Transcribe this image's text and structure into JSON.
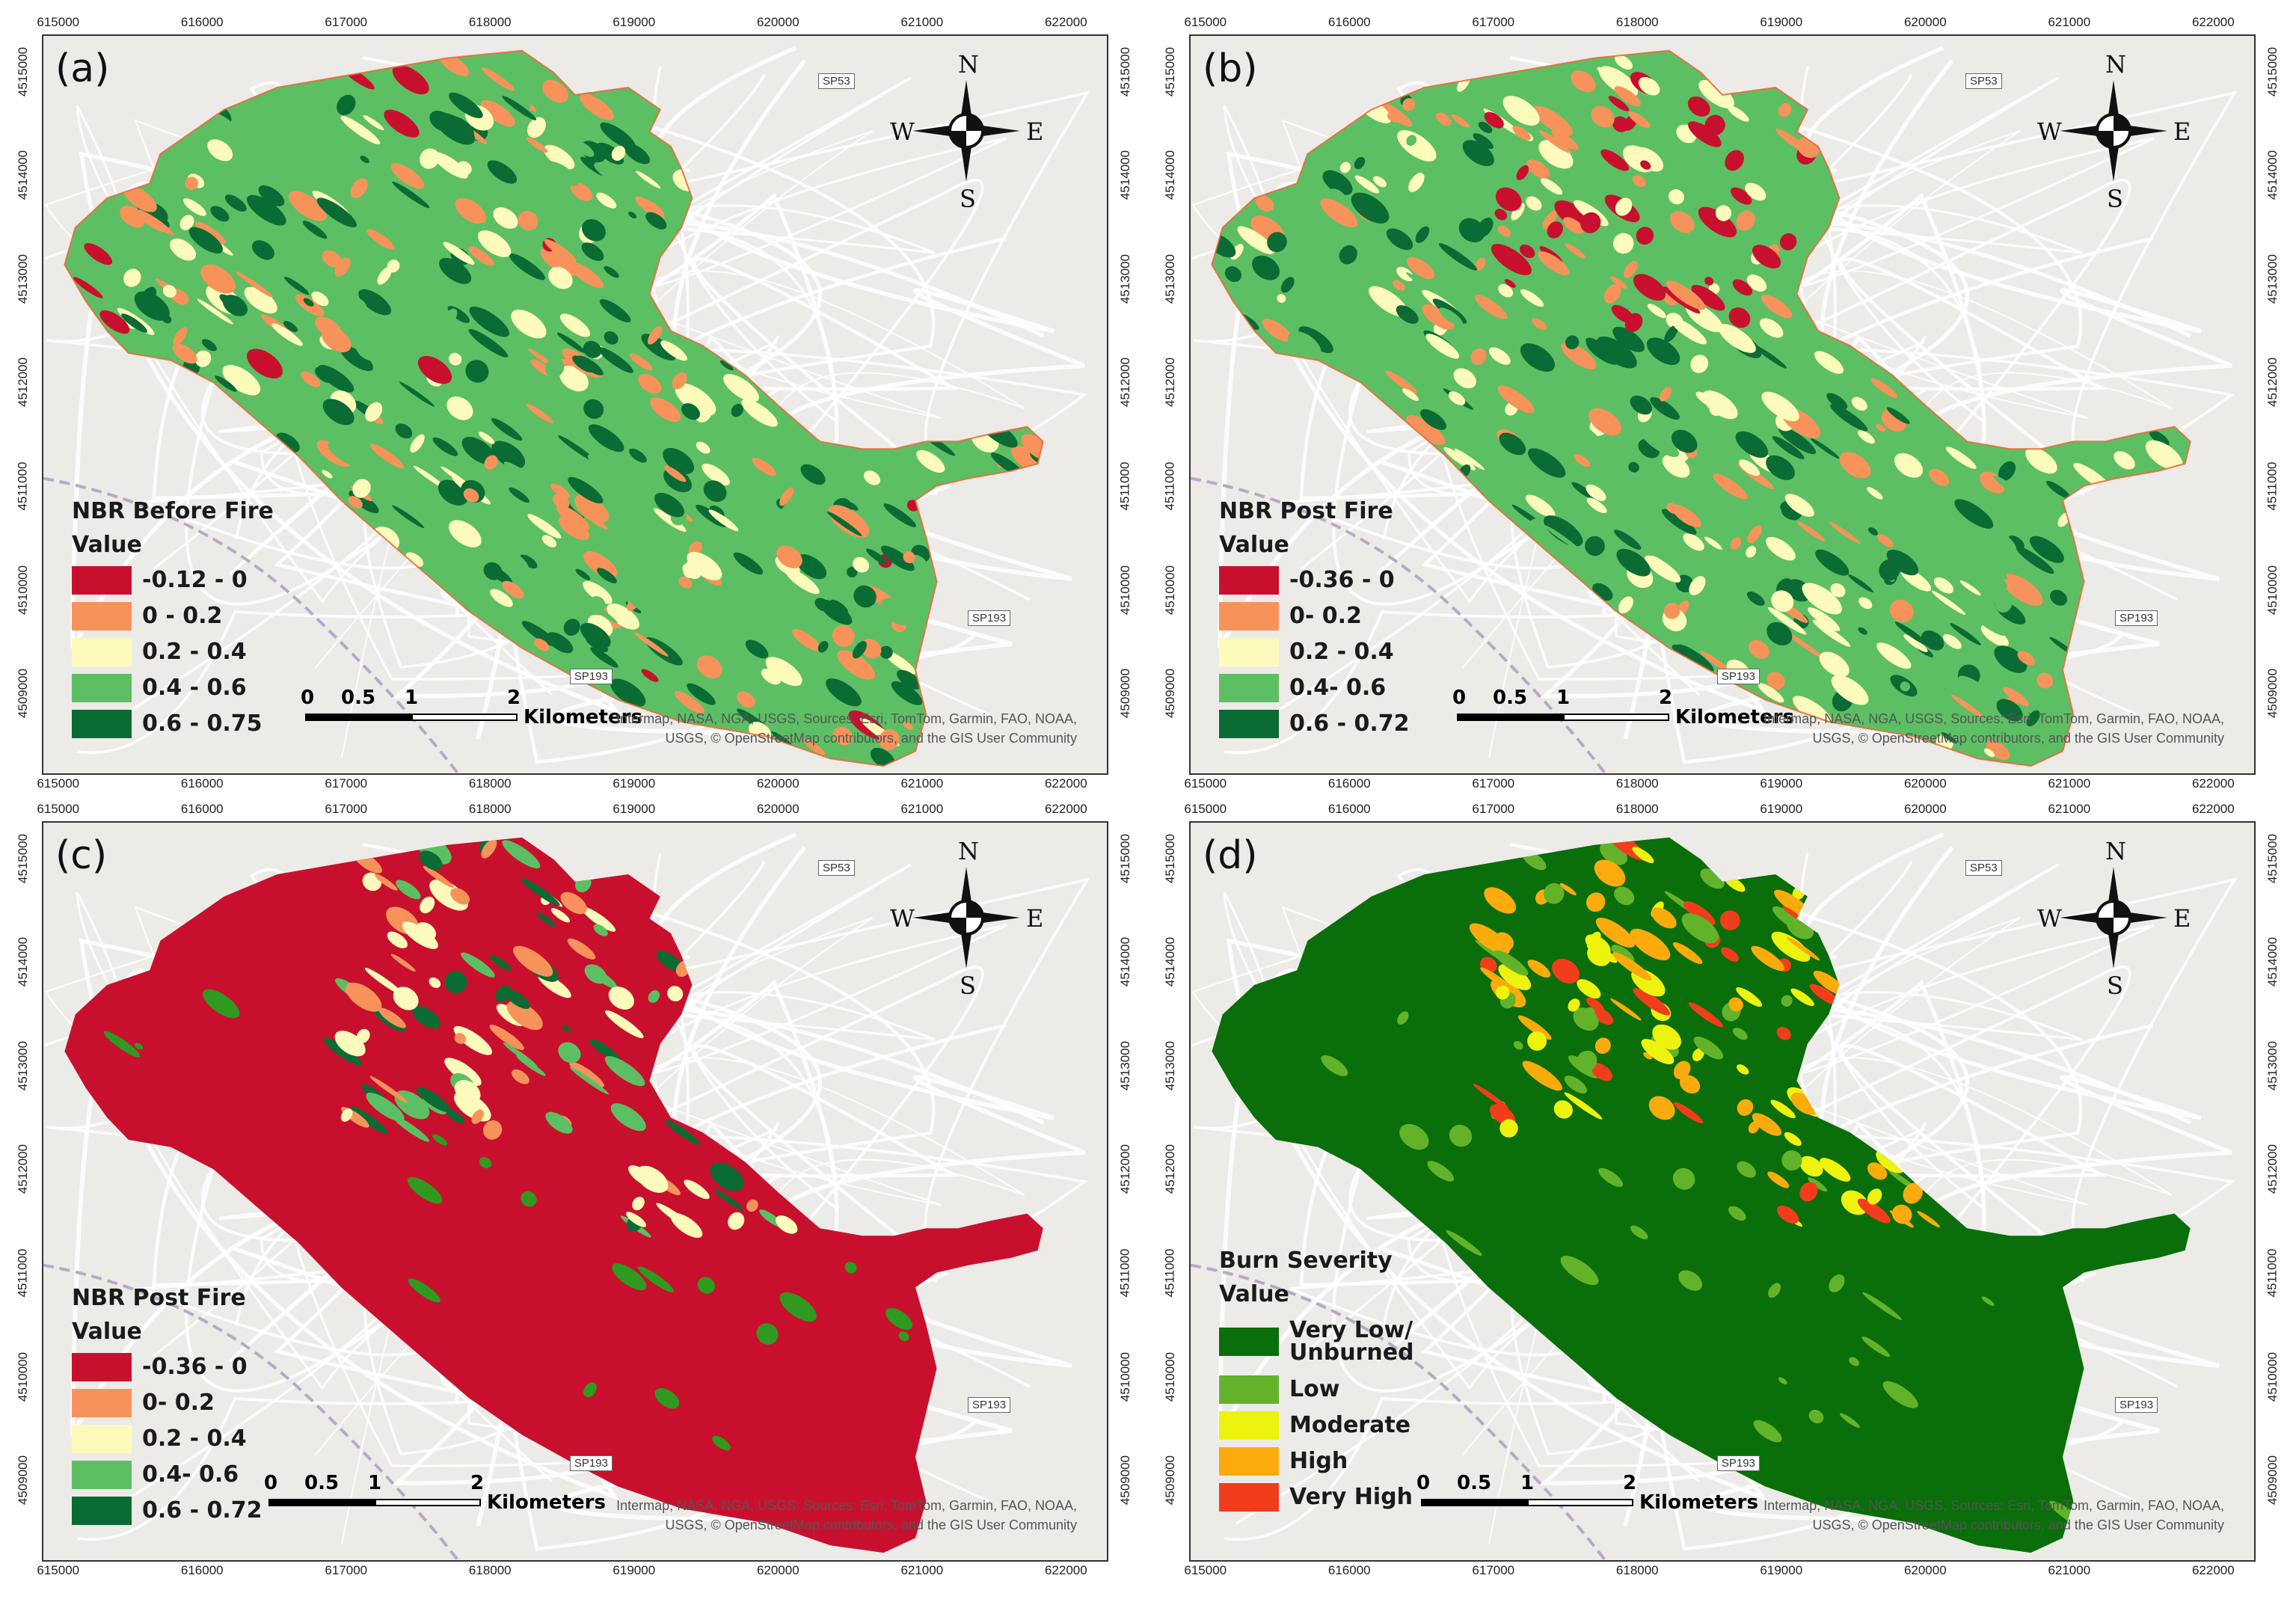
{
  "panels": [
    {
      "label": "(a)",
      "legend_title": "NBR Before Fire",
      "legend_sub": "Value",
      "legend": [
        {
          "label": "-0.12 - 0",
          "color": "#c8102e"
        },
        {
          "label": "0 - 0.2",
          "color": "#f7935a"
        },
        {
          "label": "0.2 - 0.4",
          "color": "#fdfbbb"
        },
        {
          "label": "0.4 - 0.6",
          "color": "#5dbf63"
        },
        {
          "label": "0.6 - 0.75",
          "color": "#0b6b35"
        }
      ]
    },
    {
      "label": "(b)",
      "legend_title": "NBR Post Fire",
      "legend_sub": "Value",
      "legend": [
        {
          "label": "-0.36 - 0",
          "color": "#c8102e"
        },
        {
          "label": "0- 0.2",
          "color": "#f7935a"
        },
        {
          "label": "0.2 - 0.4",
          "color": "#fdfbbb"
        },
        {
          "label": "0.4- 0.6",
          "color": "#5dbf63"
        },
        {
          "label": "0.6 - 0.72",
          "color": "#0b6b35"
        }
      ]
    },
    {
      "label": "(c)",
      "legend_title": "NBR Post Fire",
      "legend_sub": "Value",
      "legend": [
        {
          "label": "-0.36 - 0",
          "color": "#c8102e"
        },
        {
          "label": "0- 0.2",
          "color": "#f7935a"
        },
        {
          "label": "0.2 - 0.4",
          "color": "#fdfbbb"
        },
        {
          "label": "0.4- 0.6",
          "color": "#5dbf63"
        },
        {
          "label": "0.6 - 0.72",
          "color": "#0b6b35"
        }
      ]
    },
    {
      "label": "(d)",
      "legend_title": "Burn Severity",
      "legend_sub": "Value",
      "legend": [
        {
          "label": "Very Low/\nUnburned",
          "color": "#0a6e0a"
        },
        {
          "label": "Low",
          "color": "#62b32a"
        },
        {
          "label": "Moderate",
          "color": "#eef30e"
        },
        {
          "label": "High",
          "color": "#fbab0c"
        },
        {
          "label": "Very High",
          "color": "#f23d1c"
        }
      ]
    }
  ],
  "x_ticks": [
    "615000",
    "616000",
    "617000",
    "618000",
    "619000",
    "620000",
    "621000",
    "622000"
  ],
  "y_ticks": [
    "4515000",
    "4514000",
    "4513000",
    "4512000",
    "4511000",
    "4510000",
    "4509000"
  ],
  "scale": {
    "n0": "0",
    "n1": "0.5",
    "n2": "1",
    "n3": "2",
    "unit": "Kilometers"
  },
  "attribution": "Intermap, NASA, NGA, USGS, Sources: Esri, TomTom, Garmin, FAO, NOAA,\nUSGS, © OpenStreetMap contributors, and the GIS User Community",
  "compass": {
    "n": "N",
    "s": "S",
    "e": "E",
    "w": "W",
    "icon": "north-arrow-compass-icon"
  },
  "roads": {
    "sp53": "SP53",
    "sp193": "SP193"
  }
}
